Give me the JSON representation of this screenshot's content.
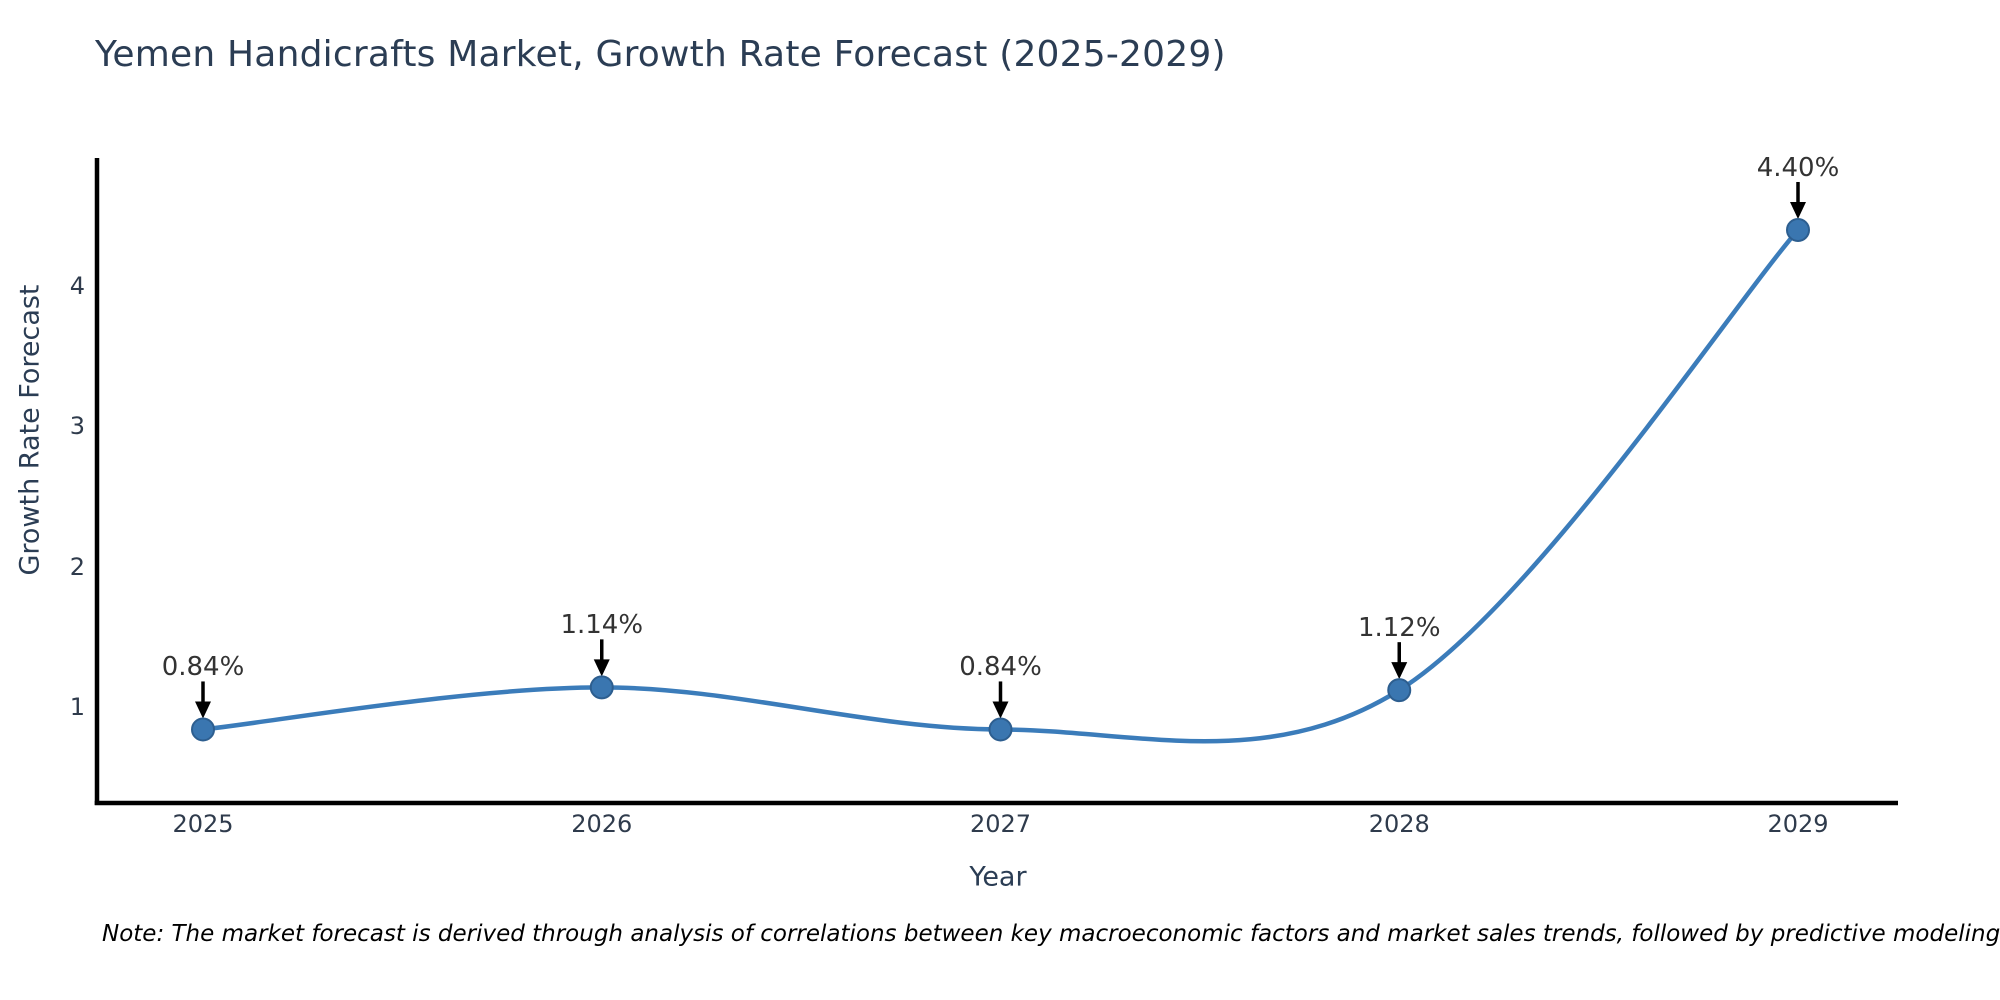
{
  "chart_data": {
    "type": "line",
    "title": "Yemen Handicrafts Market, Growth Rate Forecast (2025-2029)",
    "xlabel": "Year",
    "ylabel": "Growth Rate Forecast",
    "x": [
      2025,
      2026,
      2027,
      2028,
      2029
    ],
    "series": [
      {
        "name": "Growth Rate Forecast",
        "values": [
          0.84,
          1.14,
          0.84,
          1.12,
          4.4
        ]
      }
    ],
    "point_labels": [
      "0.84%",
      "1.14%",
      "0.84%",
      "1.12%",
      "4.40%"
    ],
    "xticks": [
      "2025",
      "2026",
      "2027",
      "2028",
      "2029"
    ],
    "yticks": [
      1,
      2,
      3,
      4
    ],
    "ylim": [
      0.3,
      4.9
    ],
    "grid": false,
    "legend": "none",
    "curve": "smooth-spline",
    "line_color": "#3b7cba",
    "marker_color": "#3a76b0",
    "marker_edge_color": "#2d5e8f",
    "annotation_arrow_color": "#000000",
    "axis_color": "#000000"
  },
  "note": "Note: The market forecast is derived through analysis of correlations between key macroeconomic factors and market sales trends, followed by predictive modeling to project future sales."
}
